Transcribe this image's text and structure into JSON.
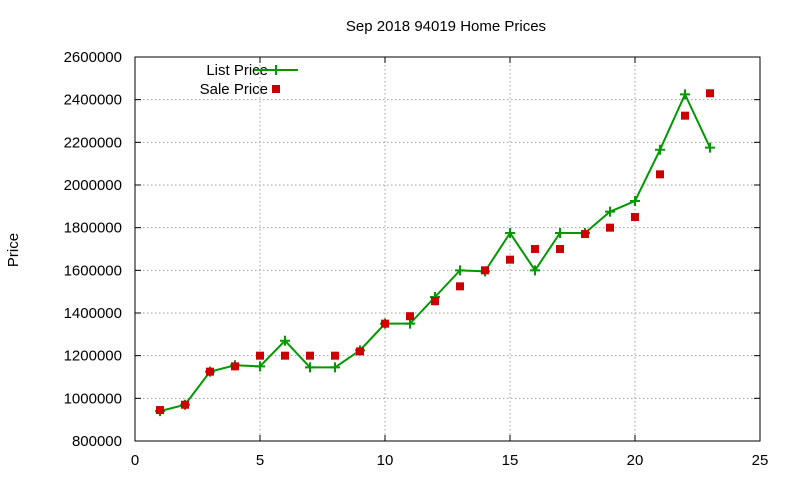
{
  "chart_data": {
    "type": "line",
    "title": "Sep 2018 94019 Home Prices",
    "xlabel": "",
    "ylabel": "Price",
    "xlim": [
      0,
      25
    ],
    "ylim": [
      800000,
      2600000
    ],
    "x_ticks": [
      0,
      5,
      10,
      15,
      20,
      25
    ],
    "y_ticks": [
      800000,
      1000000,
      1200000,
      1400000,
      1600000,
      1800000,
      2000000,
      2200000,
      2400000,
      2600000
    ],
    "grid": true,
    "legend_position": "top-left",
    "series": [
      {
        "name": "List Price",
        "style": "line-with-plus-markers",
        "color": "#009900",
        "x": [
          1,
          2,
          3,
          4,
          5,
          6,
          7,
          8,
          9,
          10,
          11,
          12,
          13,
          14,
          15,
          16,
          17,
          18,
          19,
          20,
          21,
          22,
          23
        ],
        "values": [
          940000,
          970000,
          1125000,
          1155000,
          1150000,
          1270000,
          1145000,
          1145000,
          1225000,
          1350000,
          1350000,
          1475000,
          1600000,
          1595000,
          1775000,
          1600000,
          1775000,
          1775000,
          1875000,
          1925000,
          2165000,
          2425000,
          2175000
        ]
      },
      {
        "name": "Sale Price",
        "style": "square-markers",
        "color": "#cc0000",
        "x": [
          1,
          2,
          3,
          4,
          5,
          6,
          7,
          8,
          9,
          10,
          11,
          12,
          13,
          14,
          15,
          16,
          17,
          18,
          19,
          20,
          21,
          22,
          23
        ],
        "values": [
          945000,
          970000,
          1125000,
          1150000,
          1200000,
          1200000,
          1200000,
          1200000,
          1220000,
          1350000,
          1385000,
          1455000,
          1525000,
          1600000,
          1650000,
          1700000,
          1700000,
          1770000,
          1800000,
          1850000,
          2050000,
          2325000,
          2430000
        ]
      }
    ]
  }
}
